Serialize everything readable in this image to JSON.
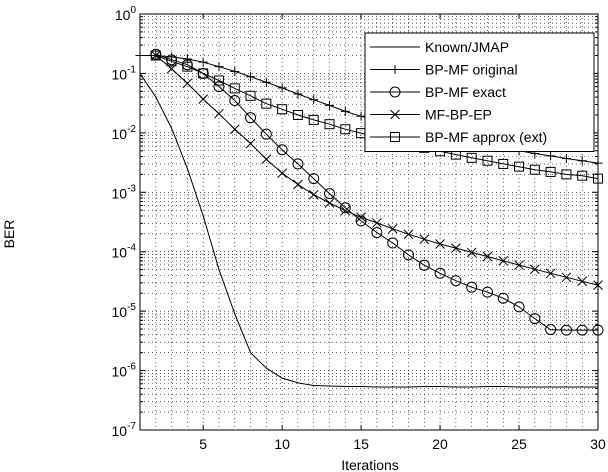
{
  "chart_data": {
    "type": "line",
    "title": "",
    "xlabel": "Iterations",
    "ylabel": "BER",
    "xlim": [
      1,
      30
    ],
    "ylim": [
      1e-07,
      1
    ],
    "y_scale": "log",
    "x_ticks": [
      5,
      10,
      15,
      20,
      25,
      30
    ],
    "y_ticks": [
      {
        "exp": -7,
        "base": "10",
        "sup": "-7"
      },
      {
        "exp": -6,
        "base": "10",
        "sup": "-6"
      },
      {
        "exp": -5,
        "base": "10",
        "sup": "-5"
      },
      {
        "exp": -4,
        "base": "10",
        "sup": "-4"
      },
      {
        "exp": -3,
        "base": "10",
        "sup": "-3"
      },
      {
        "exp": -2,
        "base": "10",
        "sup": "-2"
      },
      {
        "exp": -1,
        "base": "10",
        "sup": "-1"
      },
      {
        "exp": 0,
        "base": "10",
        "sup": "0"
      }
    ],
    "grid": "dotted",
    "legend_position": "top-right",
    "series": [
      {
        "name": "Known/JMAP",
        "marker": "none",
        "x": [
          1,
          2,
          3,
          4,
          5,
          6,
          7,
          8,
          9,
          10,
          11,
          12,
          13,
          14,
          15,
          16,
          17,
          18,
          19,
          20,
          21,
          22,
          23,
          24,
          25,
          26,
          27,
          28,
          29,
          30
        ],
        "y": [
          0.1,
          0.04,
          0.012,
          0.0025,
          0.0004,
          5e-05,
          9e-06,
          2e-06,
          1.1e-06,
          7.5e-07,
          6.2e-07,
          5.6e-07,
          5.5e-07,
          5.4e-07,
          5.4e-07,
          5.3e-07,
          5.3e-07,
          5.3e-07,
          5.4e-07,
          5.4e-07,
          5.3e-07,
          5.3e-07,
          5.4e-07,
          5.4e-07,
          5.3e-07,
          5.3e-07,
          5.3e-07,
          5.3e-07,
          5.3e-07,
          5.3e-07
        ]
      },
      {
        "name": "BP-MF original",
        "marker": "plus",
        "x": [
          1,
          2,
          3,
          4,
          5,
          6,
          7,
          8,
          9,
          10,
          11,
          12,
          13,
          14,
          15,
          16,
          17,
          18,
          19,
          20,
          21,
          22,
          23,
          24,
          25,
          26,
          27,
          28,
          29,
          30
        ],
        "y": [
          0.2,
          0.2,
          0.19,
          0.175,
          0.155,
          0.13,
          0.108,
          0.088,
          0.071,
          0.057,
          0.045,
          0.036,
          0.029,
          0.023,
          0.019,
          0.016,
          0.013,
          0.0115,
          0.01,
          0.0088,
          0.0078,
          0.0069,
          0.0062,
          0.0056,
          0.005,
          0.0045,
          0.0041,
          0.0037,
          0.0034,
          0.0031
        ]
      },
      {
        "name": "BP-MF exact",
        "marker": "circle",
        "x": [
          2,
          3,
          4,
          5,
          6,
          7,
          8,
          9,
          10,
          11,
          12,
          13,
          14,
          15,
          16,
          17,
          18,
          19,
          20,
          21,
          22,
          23,
          24,
          25,
          26,
          27,
          28,
          29,
          30
        ],
        "y": [
          0.21,
          0.17,
          0.14,
          0.1,
          0.06,
          0.035,
          0.018,
          0.0095,
          0.0052,
          0.003,
          0.0017,
          0.00095,
          0.00055,
          0.00033,
          0.00021,
          0.00014,
          8.85e-05,
          5.92e-05,
          4.34e-05,
          3.25e-05,
          2.53e-05,
          2.09e-05,
          1.65e-05,
          1.18e-05,
          7.5e-06,
          4.9e-06,
          4.8e-06,
          4.8e-06,
          4.8e-06
        ]
      },
      {
        "name": "MF-BP-EP",
        "marker": "x",
        "x": [
          2,
          3,
          4,
          5,
          6,
          7,
          8,
          9,
          10,
          11,
          12,
          13,
          14,
          15,
          16,
          17,
          18,
          19,
          20,
          21,
          22,
          23,
          24,
          25,
          26,
          27,
          28,
          29,
          30
        ],
        "y": [
          0.2,
          0.12,
          0.068,
          0.037,
          0.021,
          0.0115,
          0.0066,
          0.0036,
          0.0021,
          0.00135,
          0.00091,
          0.00066,
          0.00049,
          0.00038,
          0.000305,
          0.000243,
          0.000197,
          0.000162,
          0.000135,
          0.000115,
          9.73e-05,
          8.32e-05,
          7.03e-05,
          5.96e-05,
          5.07e-05,
          4.33e-05,
          3.71e-05,
          3.18e-05,
          2.74e-05
        ]
      },
      {
        "name": "BP-MF approx (ext)",
        "marker": "square",
        "x": [
          2,
          3,
          4,
          5,
          6,
          7,
          8,
          9,
          10,
          11,
          12,
          13,
          14,
          15,
          16,
          17,
          18,
          19,
          20,
          21,
          22,
          23,
          24,
          25,
          26,
          27,
          28,
          29,
          30
        ],
        "y": [
          0.2,
          0.16,
          0.13,
          0.1,
          0.076,
          0.056,
          0.042,
          0.031,
          0.025,
          0.02,
          0.0165,
          0.014,
          0.0115,
          0.0099,
          0.0085,
          0.0073,
          0.0064,
          0.0056,
          0.0049,
          0.0043,
          0.0038,
          0.0034,
          0.003,
          0.0027,
          0.0024,
          0.0022,
          0.002,
          0.0019,
          0.0017
        ]
      }
    ]
  }
}
